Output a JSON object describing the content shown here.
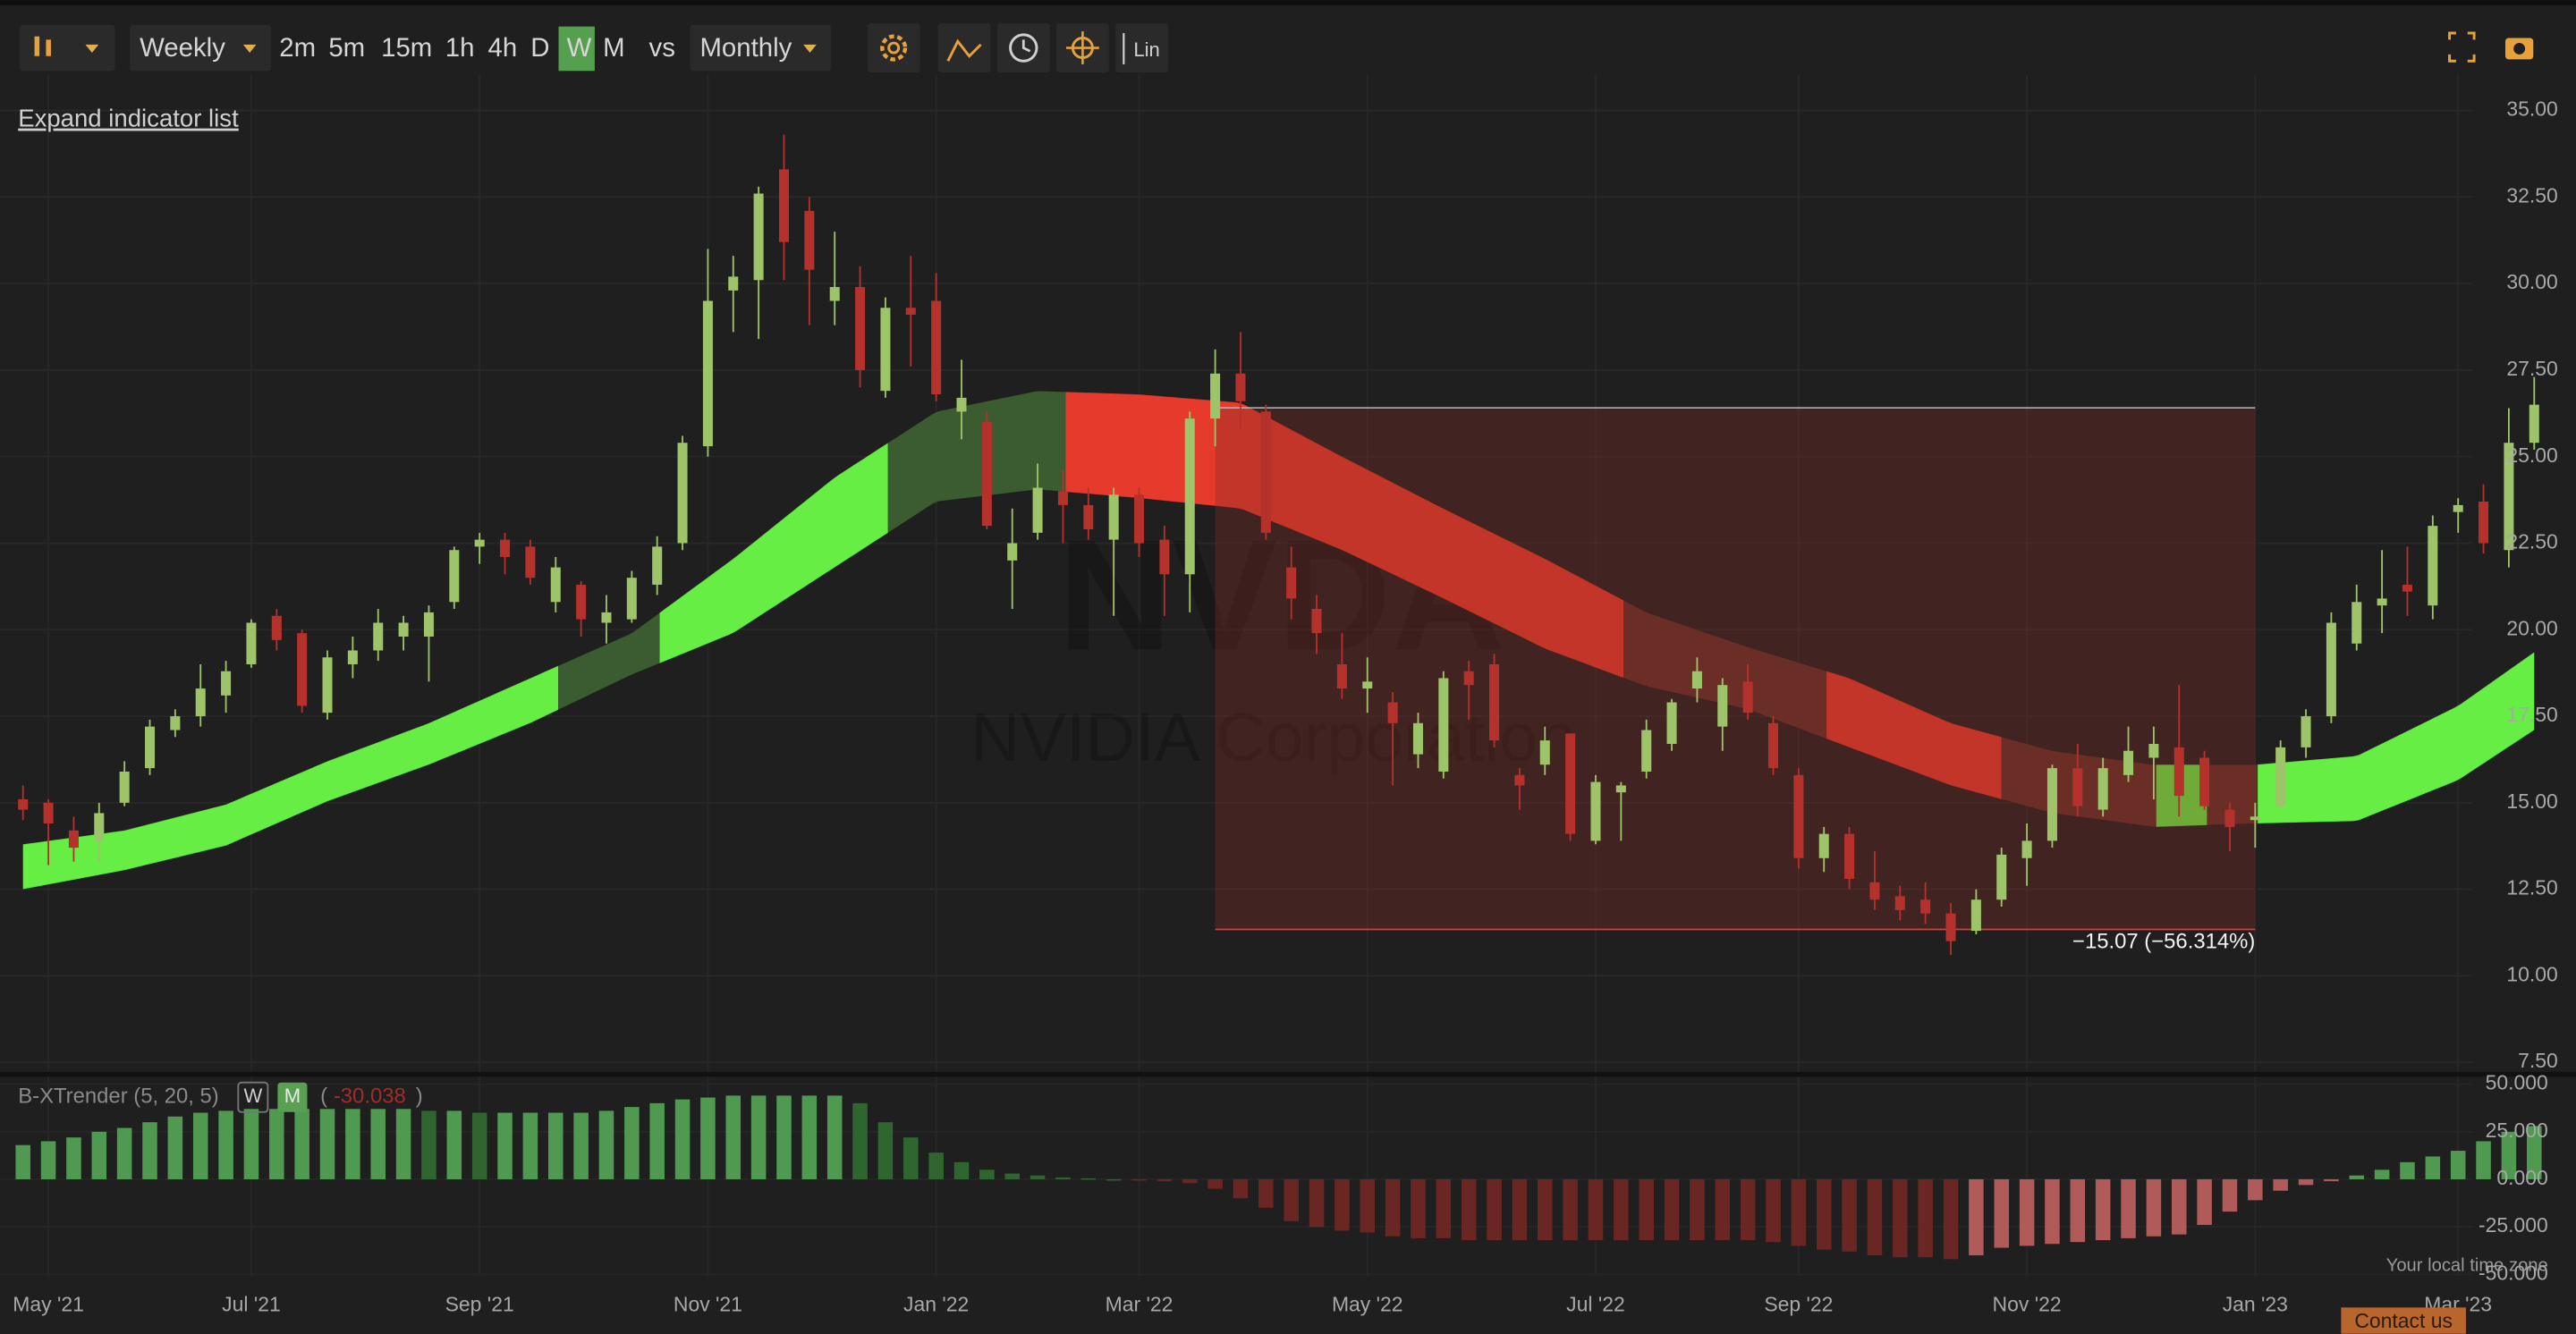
{
  "toolbar": {
    "interval": "Weekly",
    "timeframes": [
      "2m",
      "5m",
      "15m",
      "1h",
      "4h",
      "D",
      "W",
      "M"
    ],
    "active_timeframe": 6,
    "vs": "vs",
    "compare": "Monthly",
    "scale": "Lin"
  },
  "expand": "Expand indicator list",
  "watermark": {
    "symbol": "NVDA",
    "name": "NVIDIA Corporation"
  },
  "footer": {
    "timezone": "Your local time zone",
    "contact": "Contact us"
  },
  "chart_data": [
    {
      "type": "candlestick",
      "categories": [
        null,
        "May '21",
        null,
        null,
        null,
        null,
        null,
        null,
        null,
        "Jul '21",
        null,
        null,
        null,
        null,
        null,
        null,
        null,
        null,
        "Sep '21",
        null,
        null,
        null,
        null,
        null,
        null,
        null,
        null,
        "Nov '21",
        null,
        null,
        null,
        null,
        null,
        null,
        null,
        null,
        "Jan '22",
        null,
        null,
        null,
        null,
        null,
        null,
        null,
        "Mar '22",
        null,
        null,
        null,
        null,
        null,
        null,
        null,
        null,
        "May '22",
        null,
        null,
        null,
        null,
        null,
        null,
        null,
        null,
        "Jul '22",
        null,
        null,
        null,
        null,
        null,
        null,
        null,
        "Sep '22",
        null,
        null,
        null,
        null,
        null,
        null,
        null,
        null,
        "Nov '22",
        null,
        null,
        null,
        null,
        null,
        null,
        null,
        null,
        "Jan '23",
        null,
        null,
        null,
        null,
        null,
        null,
        null,
        "Mar '23",
        null,
        null,
        null
      ],
      "open": [
        15.1,
        15.0,
        14.2,
        13.9,
        15.0,
        16.0,
        17.1,
        17.5,
        18.1,
        19.0,
        20.4,
        19.9,
        17.6,
        19.0,
        19.4,
        19.8,
        19.8,
        20.8,
        22.4,
        22.6,
        22.4,
        20.8,
        21.3,
        20.2,
        20.3,
        21.3,
        22.5,
        25.3,
        29.8,
        30.1,
        33.3,
        32.1,
        29.5,
        29.9,
        26.9,
        29.3,
        29.5,
        26.3,
        26.0,
        22.0,
        22.8,
        24.0,
        23.6,
        22.6,
        23.9,
        22.6,
        21.6,
        26.1,
        27.4,
        26.3,
        21.8,
        20.6,
        19.0,
        18.3,
        17.9,
        16.4,
        15.9,
        18.8,
        19.0,
        15.8,
        16.1,
        17.0,
        13.9,
        15.3,
        15.9,
        16.7,
        18.3,
        17.2,
        18.5,
        17.3,
        15.8,
        13.4,
        14.1,
        12.7,
        12.3,
        12.2,
        11.8,
        11.3,
        12.2,
        13.4,
        13.9,
        16.0,
        14.8,
        15.8,
        16.3,
        16.6,
        16.3,
        14.8,
        14.5,
        14.9,
        16.6,
        17.5,
        19.6,
        20.7,
        21.3,
        20.7,
        23.4,
        23.7,
        22.3,
        25.4
      ],
      "high": [
        15.5,
        15.1,
        14.6,
        15.0,
        16.2,
        17.4,
        17.7,
        19.0,
        19.1,
        20.3,
        20.6,
        20.0,
        19.4,
        19.8,
        20.6,
        20.4,
        20.7,
        22.4,
        22.8,
        22.8,
        22.6,
        22.1,
        21.4,
        21.0,
        21.7,
        22.7,
        25.6,
        31.0,
        30.8,
        32.8,
        34.3,
        32.5,
        31.5,
        30.5,
        29.6,
        30.8,
        30.3,
        27.8,
        26.3,
        23.5,
        24.8,
        24.6,
        24.1,
        24.1,
        24.1,
        23.0,
        26.3,
        28.1,
        28.6,
        26.5,
        22.4,
        21.0,
        19.9,
        19.2,
        18.2,
        17.6,
        18.8,
        19.1,
        19.3,
        16.0,
        17.2,
        17.0,
        15.8,
        15.6,
        17.4,
        18.0,
        19.2,
        18.6,
        19.0,
        17.5,
        16.0,
        14.3,
        14.3,
        13.6,
        12.6,
        12.7,
        12.1,
        12.5,
        13.7,
        14.4,
        16.1,
        16.7,
        16.3,
        17.2,
        17.2,
        18.4,
        16.5,
        15.0,
        15.0,
        16.8,
        17.7,
        20.5,
        21.3,
        22.3,
        22.4,
        23.3,
        23.8,
        24.2,
        26.4,
        27.3
      ],
      "low": [
        14.5,
        13.2,
        13.3,
        13.3,
        14.9,
        15.8,
        16.9,
        17.2,
        17.6,
        18.9,
        19.4,
        17.6,
        17.4,
        18.6,
        19.1,
        19.4,
        18.5,
        20.6,
        21.9,
        21.6,
        21.3,
        20.5,
        19.8,
        19.6,
        20.2,
        21.0,
        22.3,
        25.0,
        28.6,
        28.4,
        30.1,
        28.8,
        28.8,
        27.0,
        26.7,
        27.6,
        26.6,
        25.5,
        22.9,
        20.6,
        22.6,
        22.5,
        22.6,
        20.4,
        22.1,
        20.4,
        20.5,
        25.3,
        25.8,
        22.6,
        20.3,
        19.3,
        18.0,
        17.6,
        15.5,
        16.0,
        15.7,
        17.4,
        16.6,
        14.8,
        15.8,
        13.9,
        13.8,
        13.9,
        15.7,
        16.5,
        17.9,
        16.5,
        17.4,
        15.8,
        13.1,
        13.0,
        12.5,
        11.9,
        11.6,
        11.5,
        10.6,
        11.2,
        12.0,
        12.6,
        13.7,
        14.6,
        14.6,
        15.6,
        15.1,
        14.6,
        14.8,
        13.6,
        13.7,
        14.8,
        16.3,
        17.3,
        19.4,
        19.9,
        20.4,
        20.3,
        22.8,
        22.2,
        21.8,
        25.2
      ],
      "close": [
        14.8,
        14.4,
        13.7,
        14.7,
        15.9,
        17.2,
        17.5,
        18.3,
        18.8,
        20.2,
        19.7,
        17.8,
        19.2,
        19.4,
        20.2,
        20.2,
        20.5,
        22.3,
        22.6,
        22.1,
        21.5,
        21.8,
        20.3,
        20.5,
        21.5,
        22.4,
        25.4,
        29.5,
        30.2,
        32.6,
        31.2,
        30.4,
        29.9,
        27.5,
        29.3,
        29.1,
        26.8,
        26.7,
        23.0,
        22.5,
        24.1,
        23.6,
        22.9,
        23.9,
        22.5,
        21.6,
        26.1,
        27.4,
        26.6,
        22.8,
        20.9,
        19.9,
        18.3,
        18.5,
        17.3,
        17.3,
        18.6,
        18.4,
        16.8,
        15.5,
        16.8,
        14.1,
        15.6,
        15.5,
        17.1,
        17.9,
        18.8,
        18.4,
        17.6,
        16.0,
        13.4,
        14.1,
        12.8,
        12.2,
        11.9,
        11.8,
        11.0,
        12.2,
        13.5,
        13.9,
        16.0,
        14.9,
        16.0,
        16.5,
        16.7,
        15.2,
        14.9,
        14.3,
        14.6,
        16.6,
        17.5,
        20.2,
        20.8,
        20.9,
        21.1,
        23.0,
        23.6,
        22.5,
        25.4,
        26.5
      ],
      "up_color": "#9dc468",
      "down_color": "#b5312b",
      "band": {
        "x": [
          0,
          4,
          8,
          12,
          16,
          20,
          24,
          28,
          32,
          36,
          40,
          44,
          48,
          52,
          56,
          60,
          64,
          68,
          72,
          76,
          80,
          84,
          88,
          92,
          96,
          99
        ],
        "upper": [
          13.8,
          14.2,
          14.95,
          16.2,
          17.3,
          18.6,
          19.9,
          22.05,
          24.4,
          26.3,
          26.9,
          26.8,
          26.56,
          25.0,
          23.5,
          22.05,
          20.5,
          19.5,
          18.6,
          17.3,
          16.5,
          16.1,
          16.1,
          16.35,
          17.8,
          19.35
        ],
        "lower": [
          12.5,
          13.05,
          13.76,
          15.04,
          16.1,
          17.3,
          18.7,
          19.9,
          21.8,
          23.7,
          24.05,
          23.8,
          23.5,
          22.3,
          20.9,
          19.45,
          18.36,
          17.7,
          16.6,
          15.5,
          14.7,
          14.3,
          14.4,
          14.47,
          15.65,
          17.1
        ],
        "segments": [
          {
            "from": 0,
            "to": 21.1,
            "color": "#66ee44"
          },
          {
            "from": 21.1,
            "to": 25.1,
            "color": "#3b5c31"
          },
          {
            "from": 25.1,
            "to": 34.1,
            "color": "#66ee44"
          },
          {
            "from": 34.1,
            "to": 41.1,
            "color": "#3b5c31"
          },
          {
            "from": 41.1,
            "to": 63.1,
            "color": "#e63a2c"
          },
          {
            "from": 63.1,
            "to": 71.1,
            "color": "#5e2f29"
          },
          {
            "from": 71.1,
            "to": 78,
            "color": "#e63a2c"
          },
          {
            "from": 78,
            "to": 84.1,
            "color": "#5e2f29"
          },
          {
            "from": 84.1,
            "to": 86.1,
            "color": "#66ee44"
          },
          {
            "from": 86.1,
            "to": 88.1,
            "color": "#5e2f29"
          },
          {
            "from": 88.1,
            "to": 99,
            "color": "#66ee44"
          }
        ]
      },
      "measure": {
        "from": 47,
        "to": 88,
        "high": 26.41,
        "low": 11.34,
        "label": "−15.07 (−56.314%)"
      },
      "ylim": [
        7.25,
        36.05
      ],
      "yticks": [
        {
          "value": 7.5,
          "label": "7.50"
        },
        {
          "value": 10,
          "label": "10.00"
        },
        {
          "value": 12.5,
          "label": "12.50"
        },
        {
          "value": 15,
          "label": "15.00"
        },
        {
          "value": 17.5,
          "label": "17.50"
        },
        {
          "value": 20,
          "label": "20.00"
        },
        {
          "value": 22.5,
          "label": "22.50"
        },
        {
          "value": 25,
          "label": "25.00"
        },
        {
          "value": 27.5,
          "label": "27.50"
        },
        {
          "value": 30,
          "label": "30.00"
        },
        {
          "value": 32.5,
          "label": "32.50"
        },
        {
          "value": 35,
          "label": "35.00"
        }
      ],
      "grid": true
    },
    {
      "type": "bar",
      "title": "B-XTrender (5, 20, 5)",
      "buttons": [
        "W",
        "M"
      ],
      "readout": {
        "open": "(",
        "value": "-30.038",
        "close": ")"
      },
      "values": [
        18,
        20,
        22,
        25,
        27,
        30,
        33,
        35,
        36,
        37,
        37,
        37,
        37,
        37,
        37,
        37,
        36,
        36,
        35,
        35,
        35,
        35,
        35,
        36,
        38,
        40,
        42,
        43,
        44,
        44,
        44,
        44,
        44,
        40,
        30,
        22,
        14,
        9,
        5,
        3,
        2,
        1,
        0.5,
        0,
        -0.5,
        -1,
        -2,
        -5,
        -10,
        -15,
        -22,
        -25,
        -27,
        -28,
        -30,
        -31,
        -31,
        -32,
        -32,
        -32,
        -32,
        -32,
        -32,
        -32,
        -32,
        -32,
        -32,
        -32,
        -32,
        -33,
        -35,
        -37,
        -38,
        -40,
        -41,
        -41,
        -42,
        -40,
        -36,
        -35,
        -34,
        -33,
        -32,
        -31,
        -30,
        -29,
        -24,
        -17,
        -11,
        -6,
        -3,
        -1,
        2,
        5,
        9,
        12,
        15,
        20,
        25,
        28
      ],
      "colors": {
        "up_rising": "#4f9a50",
        "up_falling": "#2f662f",
        "down_falling": "#6a2622",
        "down_rising": "#b05a5a"
      },
      "ylim": [
        -51,
        53.5
      ],
      "yticks": [
        {
          "value": -50,
          "label": "-50.000"
        },
        {
          "value": -25,
          "label": "-25.000"
        },
        {
          "value": 0,
          "label": "0.000"
        },
        {
          "value": 25,
          "label": "25.000"
        },
        {
          "value": 50,
          "label": "50.000"
        }
      ]
    }
  ]
}
